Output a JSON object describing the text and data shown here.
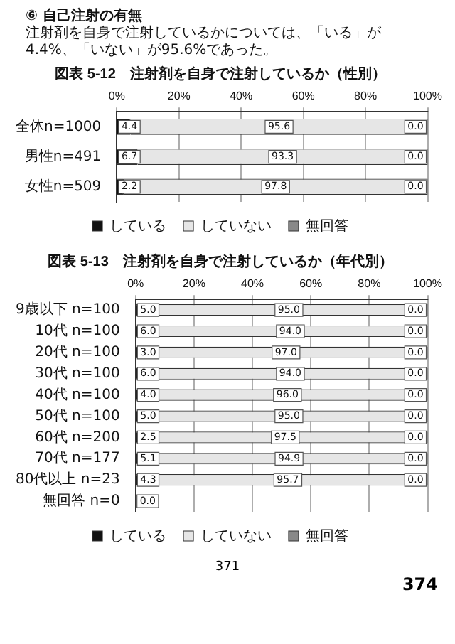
{
  "chart_data": [
    {
      "type": "bar",
      "orientation": "horizontal",
      "stacked": true,
      "title": "図表 5-12　注射剤を自身で注射しているか（性別）",
      "annotations": [
        "⑥ 自己注射の有無",
        "注射剤を自身で注射しているかについては、「いる」が4.4%、「いない」が95.6%であった。"
      ],
      "categories": [
        "全体n=1000",
        "男性n=491",
        "女性n=509"
      ],
      "series": [
        {
          "name": "している",
          "color": "#111111",
          "values": [
            4.4,
            6.7,
            2.2
          ],
          "value_labels": [
            "4.4",
            "6.7",
            "2.2"
          ]
        },
        {
          "name": "していない",
          "color": "#e6e6e6",
          "values": [
            95.6,
            93.3,
            97.8
          ],
          "value_labels": [
            "95.6",
            "93.3",
            "97.8"
          ]
        },
        {
          "name": "無回答",
          "color": "#888888",
          "values": [
            0,
            0,
            0
          ],
          "value_labels": [
            "0.0",
            "0.0",
            "0.0"
          ]
        }
      ],
      "xlim": [
        0,
        100
      ],
      "xticks": [
        {
          "value": 0,
          "label": "0%"
        },
        {
          "value": 20,
          "label": "20%"
        },
        {
          "value": 40,
          "label": "40%"
        },
        {
          "value": 60,
          "label": "60%"
        },
        {
          "value": 80,
          "label": "80%"
        },
        {
          "value": 100,
          "label": "100%"
        }
      ],
      "grid": "x",
      "legend": "bottom"
    },
    {
      "type": "bar",
      "orientation": "horizontal",
      "stacked": true,
      "title": "図表 5-13　注射剤を自身で注射しているか（年代別）",
      "annotations": [
        "371",
        "374"
      ],
      "categories": [
        "9歳以下 n=100",
        "10代 n=100",
        "20代 n=100",
        "30代 n=100",
        "40代 n=100",
        "50代 n=100",
        "60代 n=200",
        "70代 n=177",
        "80代以上 n=23",
        "無回答 n=0"
      ],
      "series": [
        {
          "name": "している",
          "color": "#111111",
          "values": [
            5.0,
            6.0,
            3.0,
            6.0,
            4.0,
            5.0,
            2.5,
            5.1,
            4.3,
            0
          ],
          "value_labels": [
            "5.0",
            "6.0",
            "3.0",
            "6.0",
            "4.0",
            "5.0",
            "2.5",
            "5.1",
            "4.3",
            "0.0"
          ]
        },
        {
          "name": "していない",
          "color": "#e6e6e6",
          "values": [
            95.0,
            94.0,
            97.0,
            94.0,
            96.0,
            95.0,
            97.5,
            94.9,
            95.7,
            0
          ],
          "value_labels": [
            "95.0",
            "94.0",
            "97.0",
            "94.0",
            "96.0",
            "95.0",
            "97.5",
            "94.9",
            "95.7",
            null
          ]
        },
        {
          "name": "無回答",
          "color": "#888888",
          "values": [
            0,
            0,
            0,
            0,
            0,
            0,
            0,
            0,
            0,
            0
          ],
          "value_labels": [
            "0.0",
            "0.0",
            "0.0",
            "0.0",
            "0.0",
            "0.0",
            "0.0",
            "0.0",
            "0.0",
            null
          ]
        }
      ],
      "xlim": [
        0,
        100
      ],
      "xticks": [
        {
          "value": 0,
          "label": "0%"
        },
        {
          "value": 20,
          "label": "20%"
        },
        {
          "value": 40,
          "label": "40%"
        },
        {
          "value": 60,
          "label": "60%"
        },
        {
          "value": 80,
          "label": "80%"
        },
        {
          "value": 100,
          "label": "100%"
        }
      ],
      "grid": "x",
      "legend": "bottom"
    }
  ]
}
